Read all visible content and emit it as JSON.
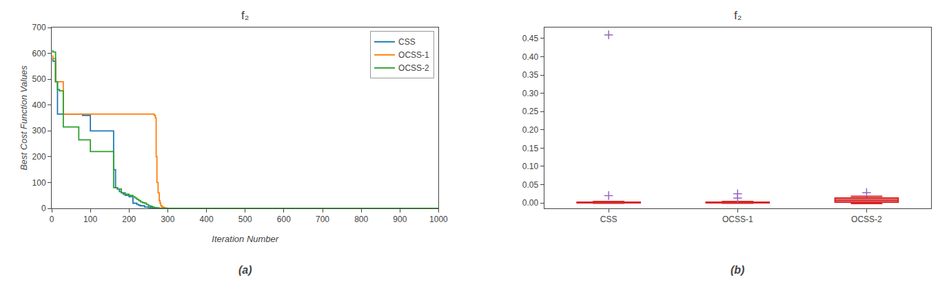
{
  "chart_data": [
    {
      "type": "step",
      "title": "f₂",
      "xlabel": "Iteration Number",
      "ylabel": "Best Cost Function Values",
      "annotation": "(a)",
      "series": [
        {
          "name": "CSS",
          "x": [
            1,
            3,
            10,
            15,
            30,
            50,
            80,
            100,
            150,
            160,
            165,
            170,
            175,
            180,
            185,
            190,
            200,
            210,
            220,
            225,
            230,
            240,
            250,
            260,
            270,
            280,
            290,
            300,
            350,
            400,
            500,
            1000
          ],
          "values": [
            580,
            570,
            490,
            365,
            365,
            365,
            360,
            300,
            300,
            150,
            80,
            75,
            65,
            60,
            55,
            50,
            45,
            20,
            15,
            12,
            10,
            5,
            3,
            2,
            1,
            0.5,
            0.2,
            0.1,
            0.05,
            0.02,
            0.01,
            0.005
          ]
        },
        {
          "name": "OCSS-1",
          "x": [
            1,
            3,
            10,
            15,
            30,
            50,
            100,
            150,
            200,
            250,
            265,
            268,
            270,
            272,
            275,
            278,
            280,
            282,
            285,
            290,
            295,
            300,
            310,
            320,
            400,
            500,
            1000
          ],
          "values": [
            590,
            580,
            490,
            490,
            365,
            365,
            365,
            365,
            365,
            365,
            360,
            350,
            200,
            100,
            60,
            30,
            20,
            10,
            5,
            2,
            1,
            0.5,
            0.2,
            0.1,
            0.05,
            0.02,
            0.01
          ]
        },
        {
          "name": "OCSS-2",
          "x": [
            1,
            3,
            10,
            15,
            20,
            30,
            50,
            70,
            100,
            120,
            140,
            150,
            160,
            170,
            180,
            190,
            200,
            210,
            215,
            220,
            225,
            230,
            235,
            240,
            245,
            250,
            255,
            260,
            265,
            270,
            275,
            280,
            290,
            300,
            350,
            400,
            500,
            1000
          ],
          "values": [
            610,
            605,
            490,
            460,
            455,
            315,
            315,
            265,
            220,
            220,
            220,
            220,
            80,
            75,
            60,
            55,
            50,
            45,
            40,
            35,
            30,
            25,
            22,
            20,
            15,
            10,
            8,
            5,
            3,
            2,
            1,
            0.5,
            0.2,
            0.1,
            0.05,
            0.02,
            0.01,
            0.005
          ]
        }
      ],
      "xlim": [
        0,
        1000
      ],
      "ylim": [
        0,
        700
      ],
      "xticks": [
        0,
        100,
        200,
        300,
        400,
        500,
        600,
        700,
        800,
        900,
        1000
      ],
      "yticks": [
        0,
        100,
        200,
        300,
        400,
        500,
        600,
        700
      ],
      "legend": "upper right",
      "grid": false
    },
    {
      "type": "box",
      "title": "f₂",
      "annotation": "(b)",
      "categories": [
        "CSS",
        "OCSS-1",
        "OCSS-2"
      ],
      "boxes": [
        {
          "whislo": -0.001,
          "q1": 0.0,
          "med": 0.0,
          "q3": 0.002,
          "whishi": 0.004,
          "fliers": [
            0.02,
            0.46
          ]
        },
        {
          "whislo": -0.001,
          "q1": 0.0,
          "med": 0.0,
          "q3": 0.002,
          "whishi": 0.004,
          "fliers": [
            0.013,
            0.025
          ]
        },
        {
          "whislo": -0.002,
          "q1": 0.002,
          "med": 0.007,
          "q3": 0.013,
          "whishi": 0.018,
          "fliers": [
            0.028
          ]
        }
      ],
      "ylim": [
        -0.015,
        0.48
      ],
      "yticks": [
        {
          "value": 0.0,
          "label": "0.00"
        },
        0.05,
        {
          "value": 0.1,
          "label": "0.10"
        },
        0.15,
        {
          "value": 0.2,
          "label": "0.20"
        },
        0.25,
        {
          "value": 0.3,
          "label": "0.30"
        },
        0.35,
        {
          "value": 0.4,
          "label": "0.40"
        },
        0.45
      ],
      "grid": false
    }
  ]
}
